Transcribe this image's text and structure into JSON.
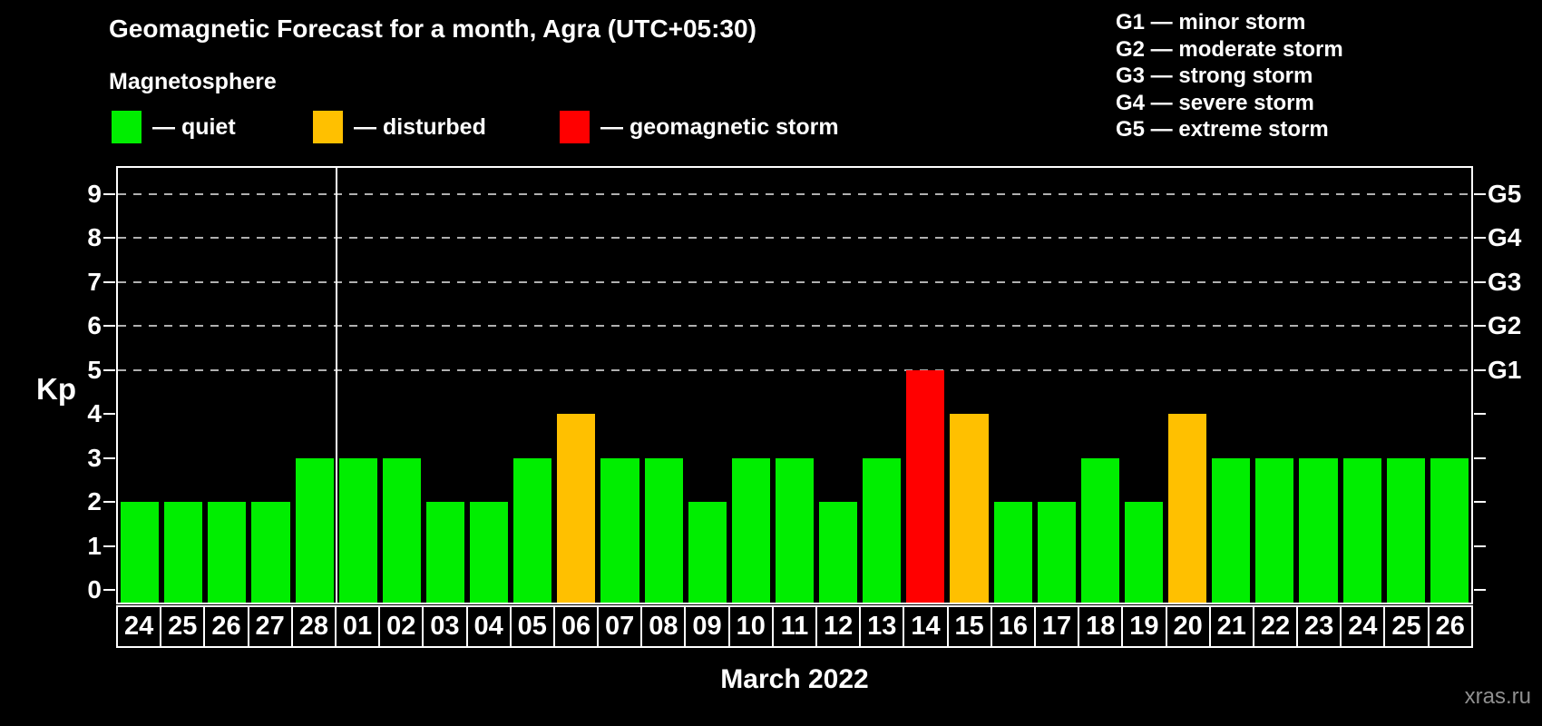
{
  "header": {
    "title": "Geomagnetic Forecast for a month, Agra (UTC+05:30)",
    "subtitle": "Magnetosphere"
  },
  "legend": {
    "items": [
      {
        "status": "quiet",
        "text": "— quiet"
      },
      {
        "status": "disturbed",
        "text": "— disturbed"
      },
      {
        "status": "storm",
        "text": "— geomagnetic storm"
      }
    ]
  },
  "g_legend": {
    "items": [
      "G1 — minor storm",
      "G2 — moderate storm",
      "G3 — strong storm",
      "G4 — severe storm",
      "G5 — extreme storm"
    ]
  },
  "chart_data": {
    "type": "bar",
    "title": "Geomagnetic Forecast for a month, Agra (UTC+05:30)",
    "ylabel": "Kp",
    "xlabel": "March 2022",
    "ylim": [
      0,
      9
    ],
    "grid": "dashed horizontal at Kp 5-9 only",
    "legend_position": "top",
    "categories": [
      "24",
      "25",
      "26",
      "27",
      "28",
      "01",
      "02",
      "03",
      "04",
      "05",
      "06",
      "07",
      "08",
      "09",
      "10",
      "11",
      "12",
      "13",
      "14",
      "15",
      "16",
      "17",
      "18",
      "19",
      "20",
      "21",
      "22",
      "23",
      "24",
      "25",
      "26"
    ],
    "values": [
      2,
      2,
      2,
      2,
      3,
      3,
      3,
      2,
      2,
      3,
      4,
      3,
      3,
      2,
      3,
      3,
      2,
      3,
      5,
      4,
      2,
      2,
      3,
      2,
      4,
      3,
      3,
      3,
      3,
      3,
      3
    ],
    "statuses": [
      "quiet",
      "quiet",
      "quiet",
      "quiet",
      "quiet",
      "quiet",
      "quiet",
      "quiet",
      "quiet",
      "quiet",
      "disturbed",
      "quiet",
      "quiet",
      "quiet",
      "quiet",
      "quiet",
      "quiet",
      "quiet",
      "storm",
      "disturbed",
      "quiet",
      "quiet",
      "quiet",
      "quiet",
      "disturbed",
      "quiet",
      "quiet",
      "quiet",
      "quiet",
      "quiet",
      "quiet"
    ],
    "gridlines": [
      5,
      6,
      7,
      8,
      9
    ],
    "left_ticks": [
      0,
      1,
      2,
      3,
      4,
      5,
      6,
      7,
      8,
      9
    ],
    "right_axis": [
      {
        "label": "G1",
        "value": 5
      },
      {
        "label": "G2",
        "value": 6
      },
      {
        "label": "G3",
        "value": 7
      },
      {
        "label": "G4",
        "value": 8
      },
      {
        "label": "G5",
        "value": 9
      }
    ],
    "month_separator_index": 5
  },
  "footer": {
    "watermark": "xras.ru"
  },
  "colors": {
    "quiet": "#00ee00",
    "disturbed": "#ffc000",
    "storm": "#ff0000",
    "grid": "#b0b0b0",
    "axis": "#ffffff",
    "watermark": "#8f8f8f"
  }
}
